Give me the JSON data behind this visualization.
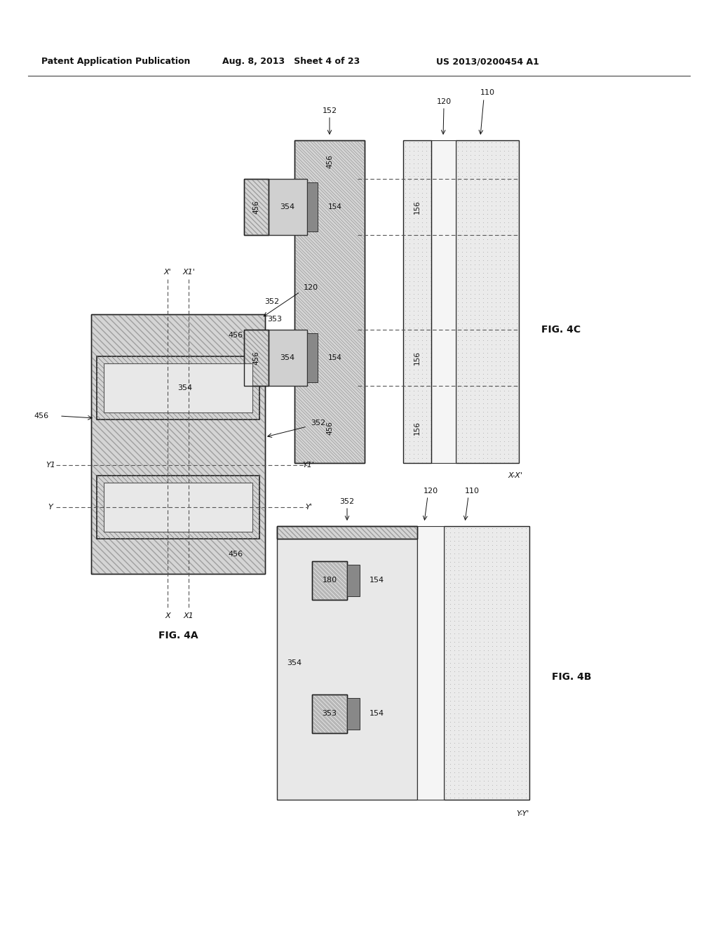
{
  "header_left": "Patent Application Publication",
  "header_mid": "Aug. 8, 2013   Sheet 4 of 23",
  "header_right": "US 2013/0200454 A1",
  "bg_color": "#ffffff",
  "crosshatch_bg": "#d8d8d8",
  "crosshatch_line": "#999999",
  "dotfill_bg": "#ebebeb",
  "dotfill_dot": "#aaaaaa",
  "fin_bg": "#e0e0e0",
  "fin_hatch": "#888888",
  "ild_bg": "#e8e8e8",
  "spacer_bg": "#888888",
  "gate_bg": "#d0d0d0",
  "border_color": "#222222",
  "text_color": "#111111",
  "dash_color": "#555555"
}
